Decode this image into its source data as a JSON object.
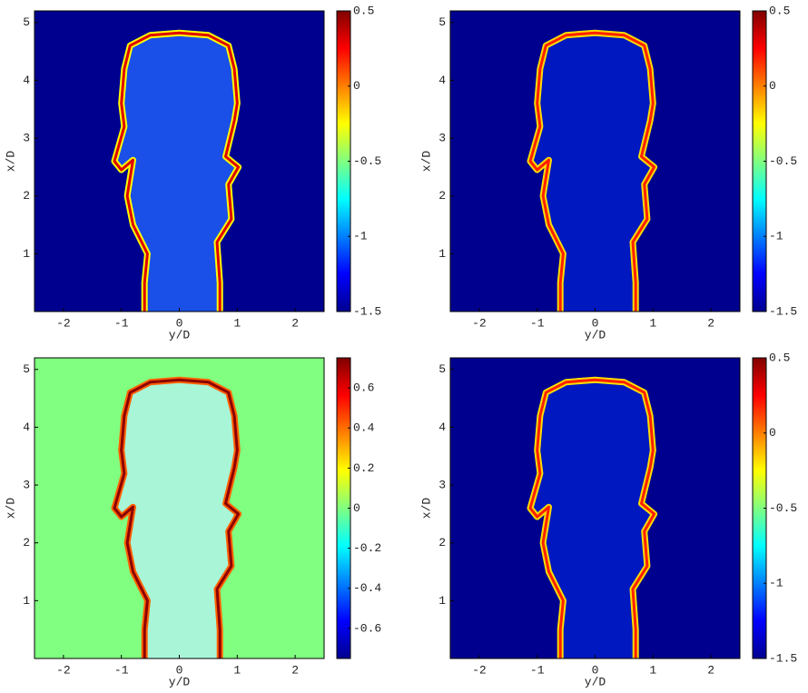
{
  "chart_data": [
    {
      "type": "heatmap",
      "xlabel": "y/D",
      "ylabel": "x/D",
      "xlim": [
        -2.5,
        2.5
      ],
      "xticks": [
        -2,
        -1,
        0,
        1,
        2
      ],
      "ylim": [
        0,
        5.2
      ],
      "yticks": [
        1,
        2,
        3,
        4,
        5
      ],
      "background": "#00008f",
      "clim": [
        -1.5,
        0.5
      ],
      "cticks": [
        -1.5,
        -1,
        -0.5,
        0,
        0.5
      ]
    },
    {
      "type": "heatmap",
      "xlabel": "y/D",
      "ylabel": "x/D",
      "xlim": [
        -2.5,
        2.5
      ],
      "xticks": [
        -2,
        -1,
        0,
        1,
        2
      ],
      "ylim": [
        0,
        5.2
      ],
      "yticks": [
        1,
        2,
        3,
        4,
        5
      ],
      "background": "#00008f",
      "clim": [
        -1.5,
        0.5
      ],
      "cticks": [
        -1.5,
        -1,
        -0.5,
        0,
        0.5
      ]
    },
    {
      "type": "heatmap",
      "xlabel": "y/D",
      "ylabel": "x/D",
      "xlim": [
        -2.5,
        2.5
      ],
      "xticks": [
        -2,
        -1,
        0,
        1,
        2
      ],
      "ylim": [
        0,
        5.2
      ],
      "yticks": [
        1,
        2,
        3,
        4,
        5
      ],
      "background": "#80ff80",
      "clim": [
        -0.75,
        0.75
      ],
      "cticks": [
        -0.6,
        -0.4,
        -0.2,
        0,
        0.2,
        0.4,
        0.6
      ]
    },
    {
      "type": "heatmap",
      "xlabel": "y/D",
      "ylabel": "x/D",
      "xlim": [
        -2.5,
        2.5
      ],
      "xticks": [
        -2,
        -1,
        0,
        1,
        2
      ],
      "ylim": [
        0,
        5.2
      ],
      "yticks": [
        1,
        2,
        3,
        4,
        5
      ],
      "background": "#00008f",
      "clim": [
        -1.5,
        0.5
      ],
      "cticks": [
        -1.5,
        -1,
        -0.5,
        0,
        0.5
      ]
    }
  ]
}
